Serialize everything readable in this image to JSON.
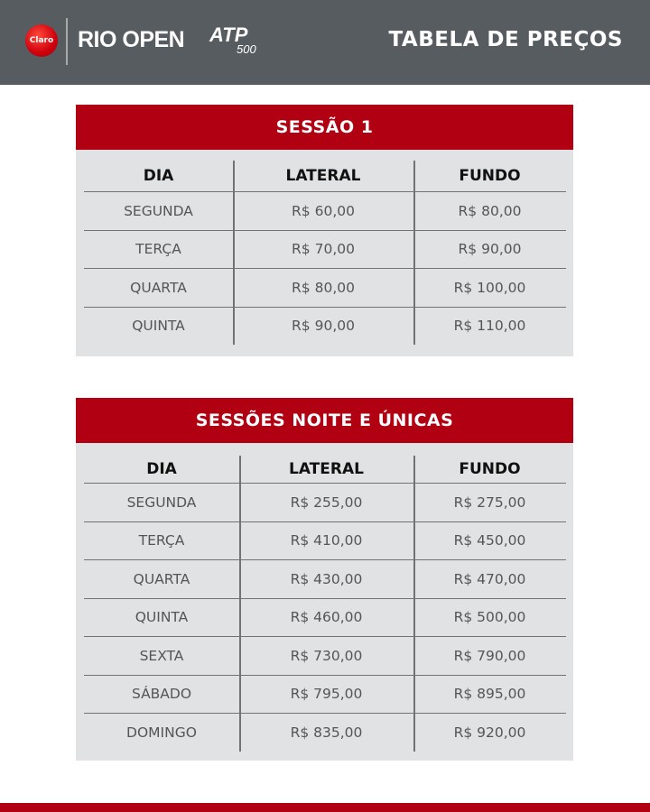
{
  "header": {
    "sponsor": "Claro",
    "brand": "RIO OPEN",
    "atp": "ATP",
    "atp_level": "500",
    "title": "TABELA DE PREÇOS"
  },
  "tables": [
    {
      "title": "SESSÃO 1",
      "columns": [
        "DIA",
        "LATERAL",
        "FUNDO"
      ],
      "rows": [
        [
          "SEGUNDA",
          "R$ 60,00",
          "R$ 80,00"
        ],
        [
          "TERÇA",
          "R$ 70,00",
          "R$ 90,00"
        ],
        [
          "QUARTA",
          "R$ 80,00",
          "R$ 100,00"
        ],
        [
          "QUINTA",
          "R$ 90,00",
          "R$ 110,00"
        ]
      ]
    },
    {
      "title": "SESSÕES NOITE E ÚNICAS",
      "columns": [
        "DIA",
        "LATERAL",
        "FUNDO"
      ],
      "rows": [
        [
          "SEGUNDA",
          "R$ 255,00",
          "R$ 275,00"
        ],
        [
          "TERÇA",
          "R$ 410,00",
          "R$ 450,00"
        ],
        [
          "QUARTA",
          "R$ 430,00",
          "R$ 470,00"
        ],
        [
          "QUINTA",
          "R$ 460,00",
          "R$ 500,00"
        ],
        [
          "SEXTA",
          "R$ 730,00",
          "R$ 790,00"
        ],
        [
          "SÁBADO",
          "R$ 795,00",
          "R$ 895,00"
        ],
        [
          "DOMINGO",
          "R$ 835,00",
          "R$ 920,00"
        ]
      ]
    }
  ],
  "colors": {
    "header_bg": "#575c60",
    "accent_red": "#b00012",
    "table_bg": "#e1e2e4"
  }
}
